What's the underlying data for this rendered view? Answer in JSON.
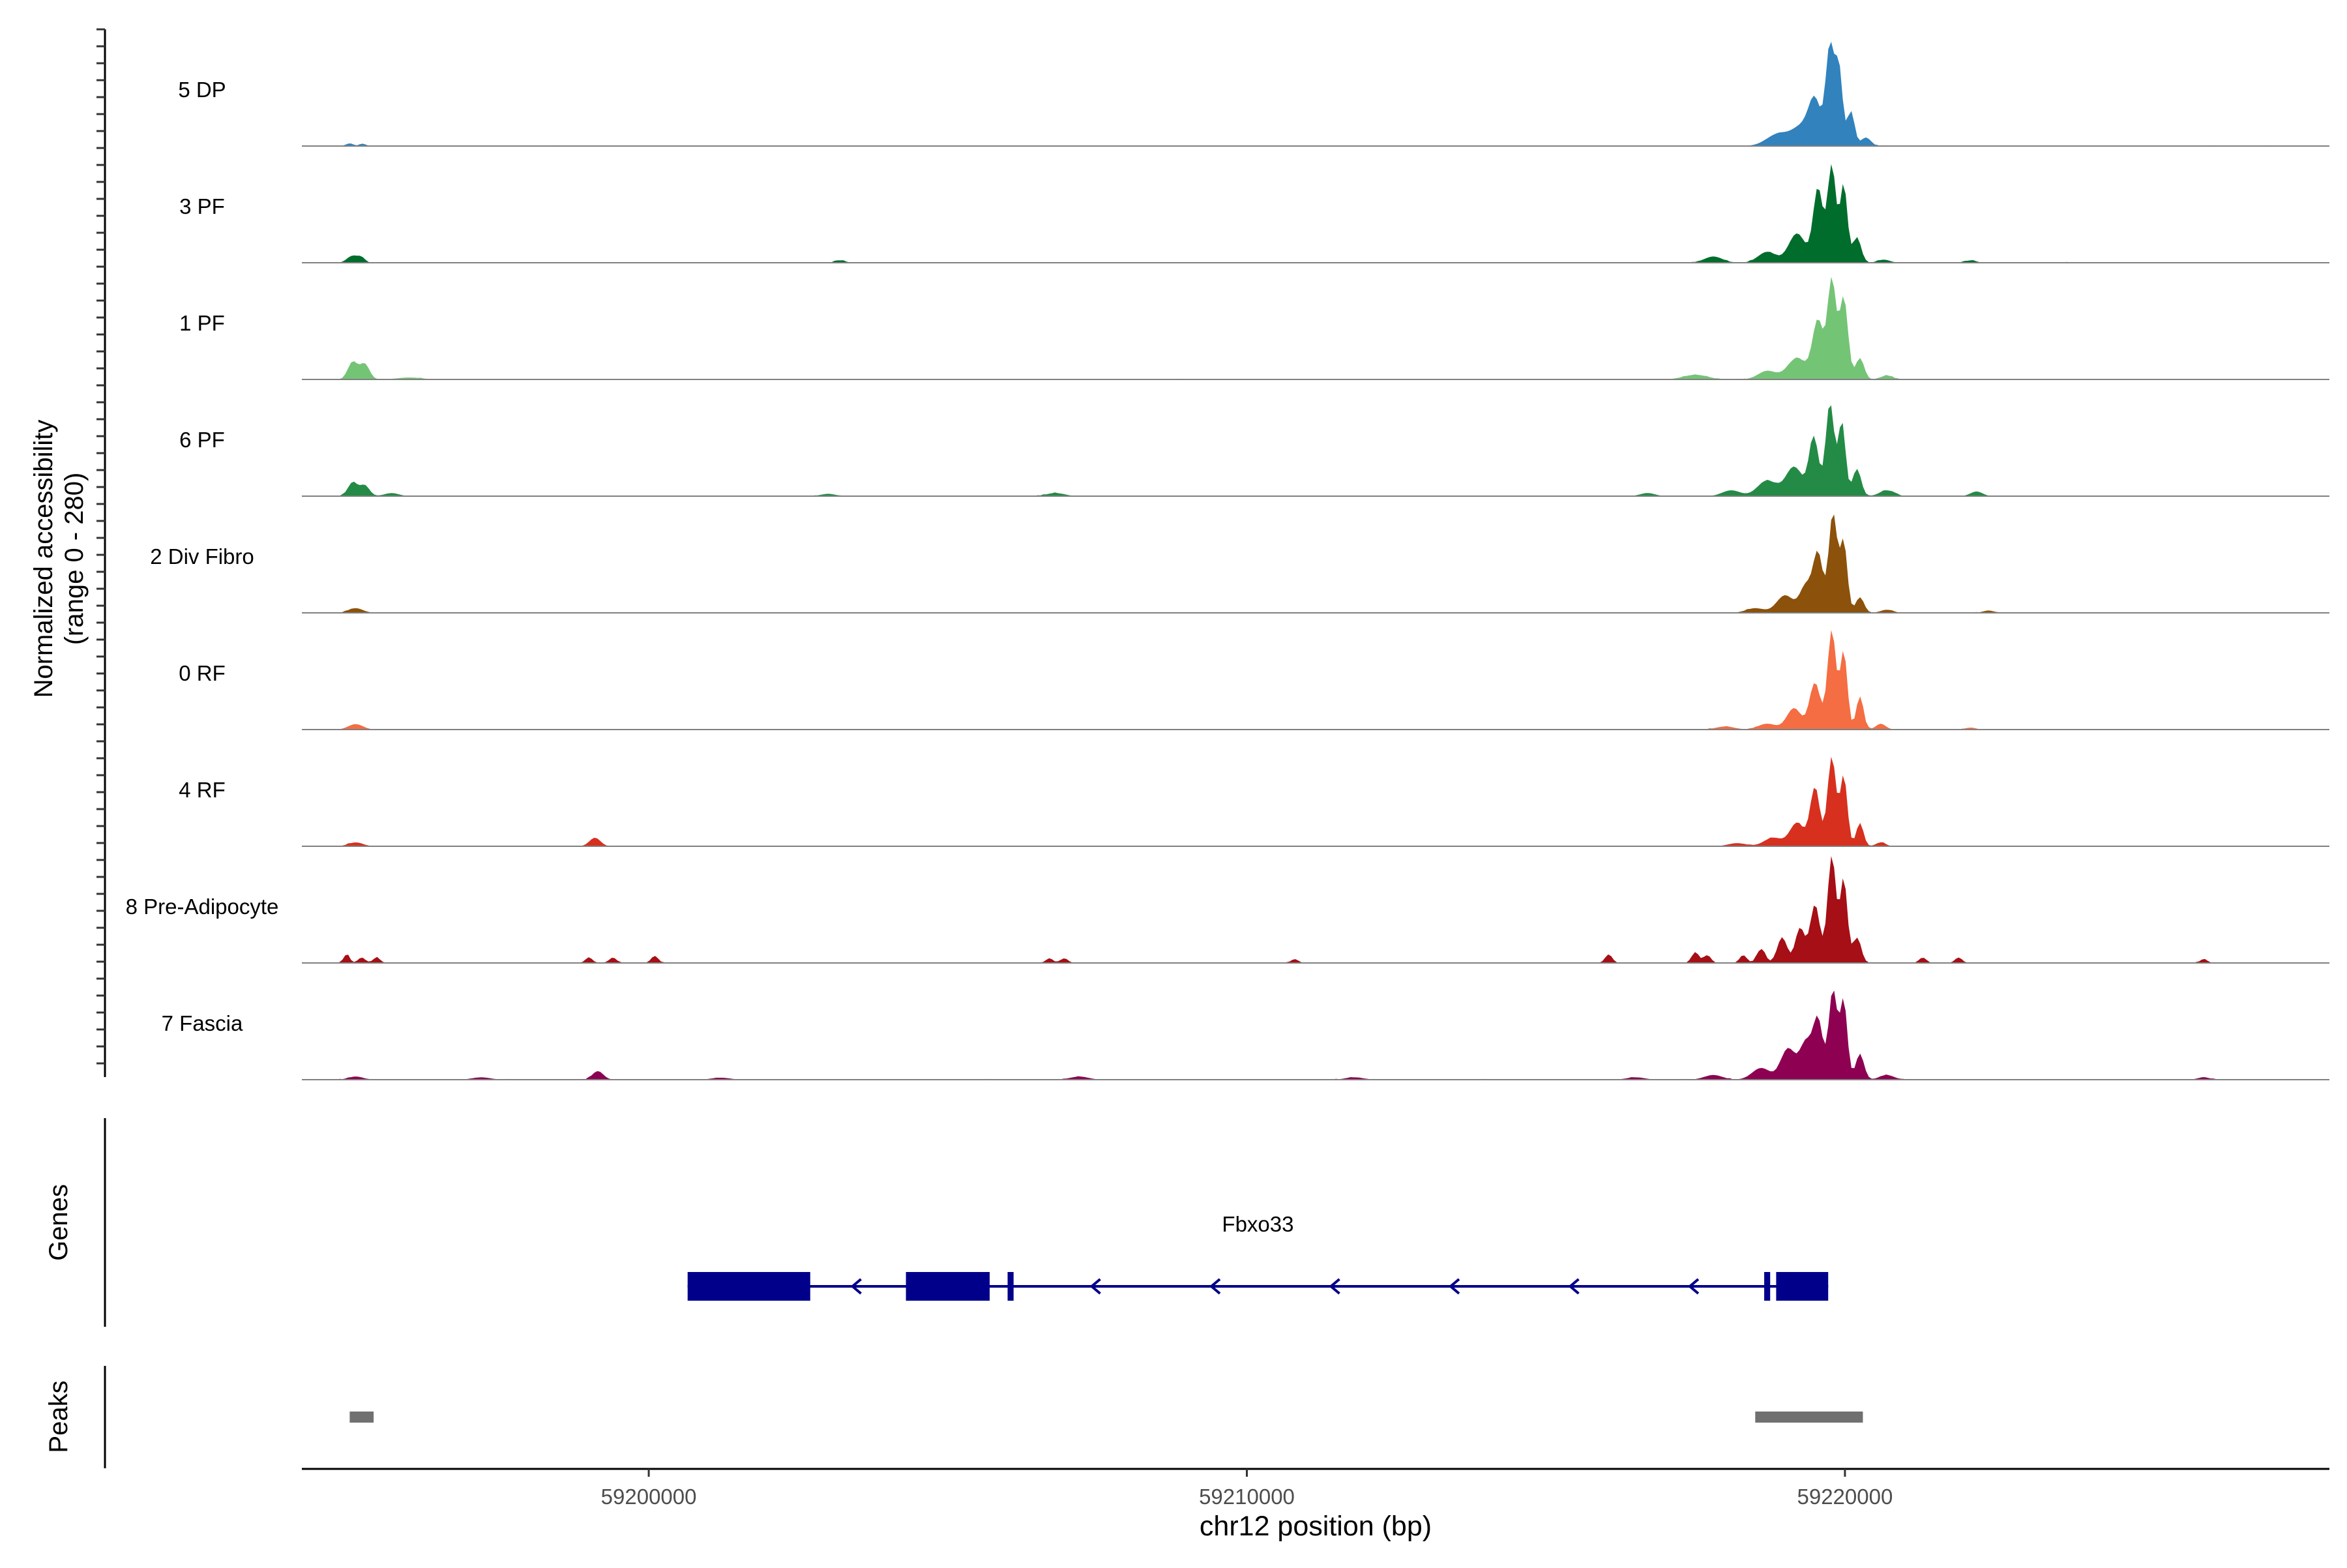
{
  "chart_data": {
    "type": "area",
    "title": "",
    "region": "chr12",
    "xlabel": "chr12 position (bp)",
    "ylabel_line1": "Normalized accessibility",
    "ylabel_line2": "(range 0 - 280)",
    "y_range": [
      0,
      280
    ],
    "xlim": [
      59194200,
      59228100
    ],
    "x_ticks": [
      {
        "value": 59200000,
        "label": "59200000"
      },
      {
        "value": 59210000,
        "label": "59210000"
      },
      {
        "value": 59220000,
        "label": "59220000"
      }
    ],
    "track_labels": {
      "genes": "Genes",
      "peaks": "Peaks"
    },
    "series": [
      {
        "name": "5 DP",
        "color": "#3182BD",
        "peaks": [
          [
            59195000,
            7,
            60
          ],
          [
            59195220,
            6,
            50
          ],
          [
            59218900,
            32,
            200
          ],
          [
            59219300,
            48,
            160
          ],
          [
            59219500,
            105,
            100
          ],
          [
            59219750,
            255,
            70
          ],
          [
            59219900,
            195,
            60
          ],
          [
            59220100,
            90,
            60
          ],
          [
            59220350,
            22,
            80
          ]
        ]
      },
      {
        "name": "3 PF",
        "color": "#006D2C",
        "peaks": [
          [
            59195050,
            18,
            90
          ],
          [
            59195200,
            12,
            60
          ],
          [
            59203200,
            6,
            90
          ],
          [
            59217800,
            16,
            150
          ],
          [
            59218700,
            28,
            150
          ],
          [
            59219200,
            75,
            140
          ],
          [
            59219550,
            190,
            80
          ],
          [
            59219780,
            250,
            70
          ],
          [
            59219980,
            200,
            60
          ],
          [
            59220200,
            65,
            70
          ],
          [
            59220650,
            8,
            100
          ],
          [
            59222100,
            6,
            90
          ]
        ]
      },
      {
        "name": "1 PF",
        "color": "#74C476",
        "peaks": [
          [
            59195050,
            45,
            80
          ],
          [
            59195250,
            40,
            80
          ],
          [
            59196000,
            5,
            200
          ],
          [
            59217500,
            12,
            200
          ],
          [
            59218700,
            22,
            150
          ],
          [
            59219200,
            55,
            160
          ],
          [
            59219550,
            150,
            90
          ],
          [
            59219780,
            255,
            70
          ],
          [
            59219980,
            210,
            70
          ],
          [
            59220250,
            55,
            70
          ],
          [
            59220700,
            10,
            100
          ]
        ]
      },
      {
        "name": "6 PF",
        "color": "#238B45",
        "peaks": [
          [
            59195050,
            35,
            80
          ],
          [
            59195250,
            28,
            80
          ],
          [
            59195700,
            8,
            120
          ],
          [
            59203000,
            6,
            120
          ],
          [
            59206800,
            8,
            150
          ],
          [
            59216700,
            8,
            120
          ],
          [
            59218100,
            15,
            150
          ],
          [
            59218700,
            40,
            160
          ],
          [
            59219150,
            75,
            140
          ],
          [
            59219480,
            150,
            80
          ],
          [
            59219750,
            240,
            70
          ],
          [
            59219950,
            190,
            60
          ],
          [
            59220200,
            70,
            70
          ],
          [
            59220700,
            15,
            120
          ],
          [
            59222200,
            12,
            100
          ]
        ]
      },
      {
        "name": "2 Div Fibro",
        "color": "#8C510A",
        "peaks": [
          [
            59195100,
            12,
            120
          ],
          [
            59218500,
            12,
            150
          ],
          [
            59219000,
            45,
            140
          ],
          [
            59219350,
            70,
            100
          ],
          [
            59219550,
            150,
            80
          ],
          [
            59219800,
            255,
            70
          ],
          [
            59219980,
            180,
            60
          ],
          [
            59220250,
            40,
            70
          ],
          [
            59220700,
            8,
            100
          ],
          [
            59222400,
            6,
            90
          ]
        ]
      },
      {
        "name": "0 RF",
        "color": "#F46D43",
        "peaks": [
          [
            59195100,
            14,
            120
          ],
          [
            59218000,
            8,
            150
          ],
          [
            59218700,
            15,
            150
          ],
          [
            59219150,
            55,
            120
          ],
          [
            59219500,
            120,
            90
          ],
          [
            59219780,
            255,
            70
          ],
          [
            59219980,
            200,
            60
          ],
          [
            59220250,
            85,
            60
          ],
          [
            59220600,
            15,
            80
          ],
          [
            59222100,
            5,
            90
          ]
        ]
      },
      {
        "name": "4 RF",
        "color": "#D7301F",
        "peaks": [
          [
            59195100,
            10,
            120
          ],
          [
            59199100,
            22,
            90
          ],
          [
            59218200,
            8,
            150
          ],
          [
            59218800,
            22,
            150
          ],
          [
            59219200,
            60,
            120
          ],
          [
            59219500,
            150,
            80
          ],
          [
            59219780,
            230,
            70
          ],
          [
            59219980,
            180,
            60
          ],
          [
            59220250,
            60,
            60
          ],
          [
            59220600,
            10,
            80
          ]
        ]
      },
      {
        "name": "8 Pre-Adipocyte",
        "color": "#A50F15",
        "peaks": [
          [
            59194950,
            22,
            50
          ],
          [
            59195200,
            14,
            60
          ],
          [
            59195450,
            14,
            60
          ],
          [
            59199000,
            14,
            60
          ],
          [
            59199400,
            14,
            60
          ],
          [
            59200100,
            18,
            60
          ],
          [
            59206700,
            12,
            60
          ],
          [
            59206950,
            12,
            60
          ],
          [
            59210800,
            10,
            60
          ],
          [
            59216050,
            22,
            60
          ],
          [
            59217500,
            28,
            60
          ],
          [
            59217700,
            20,
            60
          ],
          [
            59218300,
            20,
            60
          ],
          [
            59218600,
            36,
            70
          ],
          [
            59218950,
            66,
            80
          ],
          [
            59219250,
            90,
            80
          ],
          [
            59219500,
            150,
            80
          ],
          [
            59219780,
            275,
            70
          ],
          [
            59219980,
            215,
            60
          ],
          [
            59220200,
            65,
            70
          ],
          [
            59221300,
            14,
            60
          ],
          [
            59221900,
            14,
            60
          ],
          [
            59226000,
            10,
            60
          ]
        ]
      },
      {
        "name": "7 Fascia",
        "color": "#8E0152",
        "peaks": [
          [
            59195100,
            8,
            120
          ],
          [
            59197200,
            6,
            150
          ],
          [
            59199150,
            22,
            90
          ],
          [
            59201200,
            5,
            150
          ],
          [
            59207200,
            8,
            150
          ],
          [
            59211800,
            6,
            150
          ],
          [
            59216500,
            6,
            150
          ],
          [
            59217800,
            12,
            150
          ],
          [
            59218600,
            30,
            150
          ],
          [
            59219050,
            80,
            120
          ],
          [
            59219350,
            95,
            100
          ],
          [
            59219550,
            150,
            80
          ],
          [
            59219800,
            230,
            70
          ],
          [
            59219980,
            200,
            60
          ],
          [
            59220250,
            65,
            70
          ],
          [
            59220700,
            12,
            120
          ],
          [
            59226000,
            6,
            100
          ]
        ]
      }
    ],
    "gene": {
      "name": "Fbxo33",
      "strand": "-",
      "span": [
        59200650,
        59219720
      ],
      "exons": [
        [
          59200650,
          59202700
        ],
        [
          59204300,
          59205700
        ],
        [
          59206000,
          59206100
        ],
        [
          59218650,
          59218750
        ],
        [
          59218850,
          59219720
        ]
      ],
      "color": "#00008B"
    },
    "peaks_track": {
      "color": "#707070",
      "intervals": [
        [
          59195000,
          59195400
        ],
        [
          59218500,
          59220300
        ]
      ]
    }
  }
}
